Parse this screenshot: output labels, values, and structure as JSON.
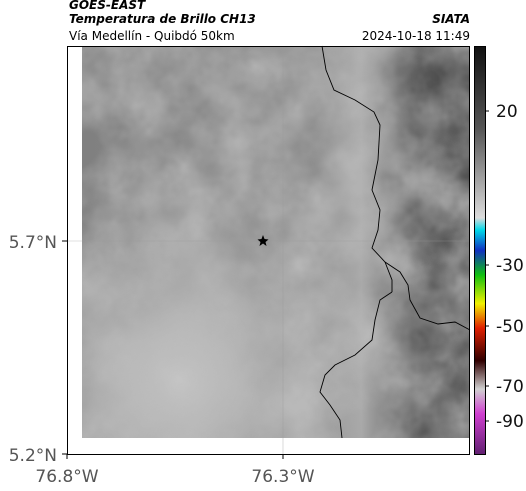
{
  "header": {
    "title": "GOES-EAST",
    "subtitle": "Temperatura de Brillo CH13",
    "source": "SIATA",
    "location": "Vía Medellín - Quibdó 50km",
    "datetime": "2024-10-18 11:49"
  },
  "map": {
    "lon_labels": [
      "76.8°W",
      "76.3°W"
    ],
    "lat_labels": [
      "5.7°N",
      "5.2°N"
    ]
  },
  "colorbar": {
    "ticks": [
      20,
      -30,
      -50,
      -70,
      -90
    ]
  }
}
